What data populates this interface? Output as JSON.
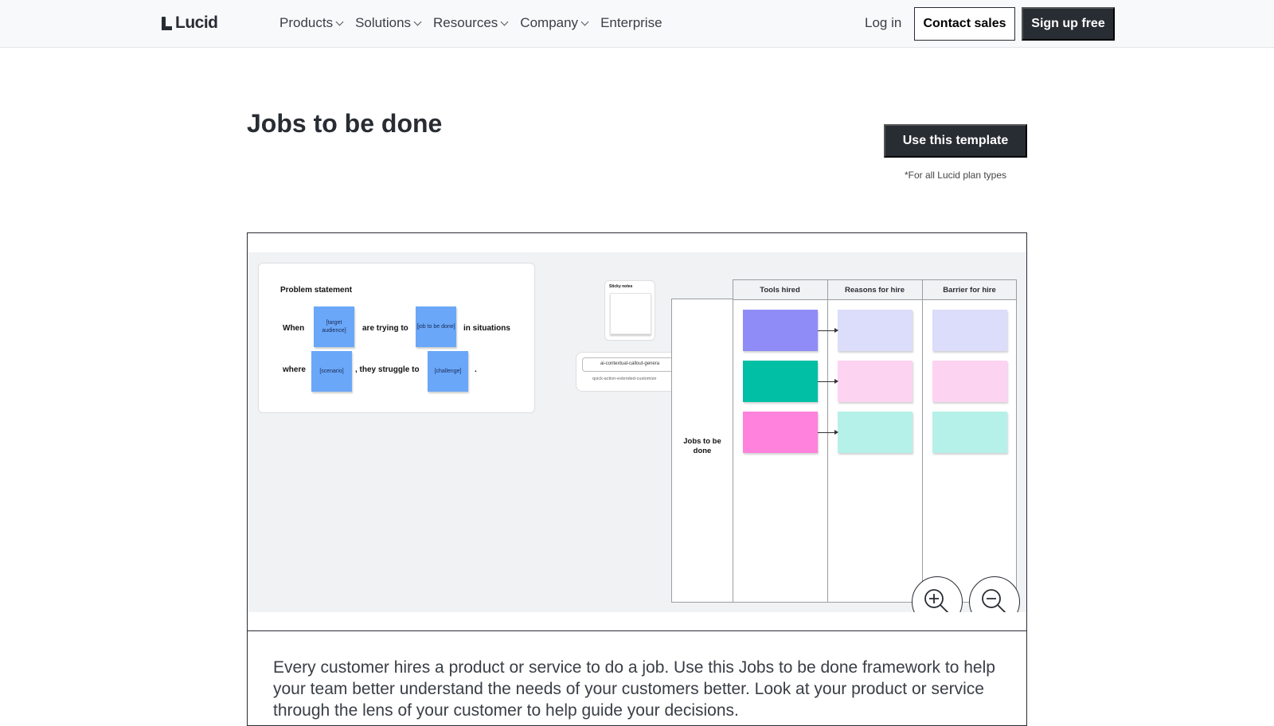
{
  "nav": {
    "logo": "Lucid",
    "menu": [
      {
        "label": "Products"
      },
      {
        "label": "Solutions"
      },
      {
        "label": "Resources"
      },
      {
        "label": "Company"
      },
      {
        "label": "Enterprise"
      }
    ],
    "login": "Log in",
    "contact": "Contact sales",
    "signup": "Sign up free"
  },
  "header": {
    "title": "Jobs to be done",
    "cta": "Use this template",
    "cta_note": "*For all Lucid plan types"
  },
  "preview": {
    "problem": {
      "title": "Problem statement",
      "w1": "When",
      "s1": "[target audience]",
      "w2": "are trying to",
      "s2": "[job to be done]",
      "w3": "in situations",
      "w4": "where",
      "s3": "[scenario]",
      "w5": ", they struggle to",
      "s4": "[challenge]",
      "w6": "."
    },
    "sticky_panel": "Sticky notes",
    "callout": {
      "item1": "ai-contextual-callout-genera",
      "item2": "quick-action-extended-customize"
    },
    "table": {
      "row_label": "Jobs to be done",
      "columns": [
        "Tools hired",
        "Reasons for hire",
        "Barrier for hire"
      ]
    },
    "colors": {
      "tools": [
        "#8f8cf7",
        "#00bfa5",
        "#ff82dc"
      ],
      "rows": [
        "#dcdcfb",
        "#fdd3f2",
        "#b5f1e8"
      ],
      "sticky": "#6aa7f8"
    },
    "zoom_in": "zoom-in-icon",
    "zoom_out": "zoom-out-icon"
  },
  "description": "Every customer hires a product or service to do a job. Use this Jobs to be done framework to help your team better understand the needs of your customers better. Look at your product or service through the lens of your customer to help guide your decisions."
}
